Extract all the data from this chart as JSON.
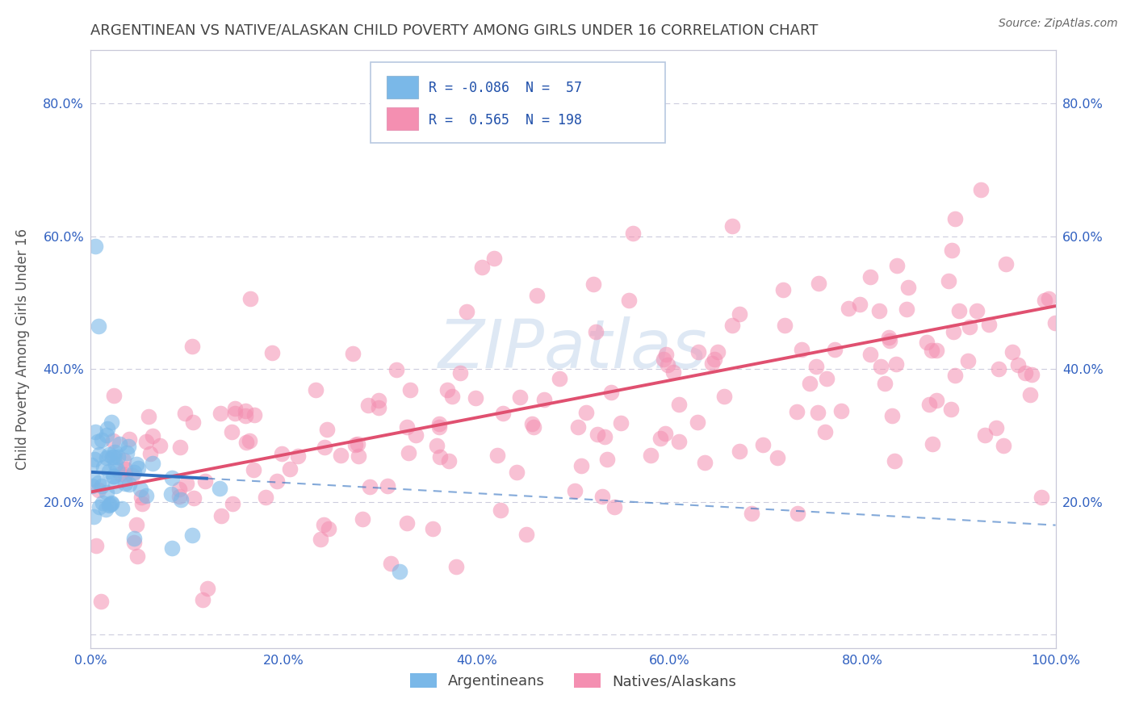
{
  "title": "ARGENTINEAN VS NATIVE/ALASKAN CHILD POVERTY AMONG GIRLS UNDER 16 CORRELATION CHART",
  "source": "Source: ZipAtlas.com",
  "ylabel": "Child Poverty Among Girls Under 16",
  "xlim": [
    0.0,
    1.0
  ],
  "ylim": [
    -0.02,
    0.88
  ],
  "x_ticks": [
    0.0,
    0.2,
    0.4,
    0.6,
    0.8,
    1.0
  ],
  "x_tick_labels": [
    "0.0%",
    "20.0%",
    "40.0%",
    "60.0%",
    "80.0%",
    "100.0%"
  ],
  "y_ticks": [
    0.0,
    0.2,
    0.4,
    0.6,
    0.8
  ],
  "y_tick_labels": [
    "",
    "20.0%",
    "40.0%",
    "60.0%",
    "80.0%"
  ],
  "argentinean_color": "#7ab8e8",
  "native_color": "#f48fb1",
  "trend_argentinean_color": "#3070c0",
  "trend_native_color": "#e05070",
  "background_color": "#ffffff",
  "grid_color": "#ccccdd",
  "title_color": "#444444",
  "watermark_color": "#d0dff0",
  "argentinean_R": -0.086,
  "argentinean_N": 57,
  "native_R": 0.565,
  "native_N": 198,
  "legend_label_arg": "Argentineans",
  "legend_label_nat": "Natives/Alaskans",
  "trend_arg_x_solid_end": 0.12,
  "trend_arg_intercept": 0.245,
  "trend_arg_slope": -0.08,
  "trend_nat_intercept": 0.215,
  "trend_nat_slope": 0.28
}
